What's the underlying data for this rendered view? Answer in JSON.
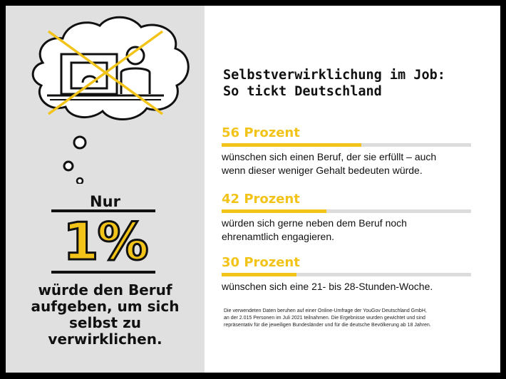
{
  "left_panel": {
    "intro": "Nur",
    "big_number": "1%",
    "caption_lines": [
      "würde den Beruf",
      "aufgeben, um sich",
      "selbst zu",
      "verwirklichen."
    ]
  },
  "right_panel": {
    "title_lines": [
      "Selbstverwirklichung im Job:",
      "So tickt Deutschland"
    ],
    "stats": [
      {
        "label": "56 Prozent",
        "value": 0.56,
        "text_lines": [
          "wünschen sich einen Beruf, der sie erfüllt – auch",
          "wenn dieser weniger Gehalt bedeuten würde."
        ]
      },
      {
        "label": "42 Prozent",
        "value": 0.42,
        "text_lines": [
          "würden sich gerne neben dem Beruf noch",
          "ehrenamtlich engagieren."
        ]
      },
      {
        "label": "30 Prozent",
        "value": 0.3,
        "text_lines": [
          "wünschen sich eine 21- bis 28-Stunden-Woche."
        ]
      }
    ],
    "footnote_lines": [
      "Die verwendeten Daten beruhen auf einer Online-Umfrage der YouGov Deutschland GmbH,",
      "an der 2.015 Personen im Juli 2021 teilnahmen. Die Ergebnisse wurden gewichtet und sind",
      "repräsentativ für die jeweiligen Bundesländer und für die deutsche Bevölkerung ab 18 Jahren."
    ]
  },
  "colors": {
    "accent": "#f2c318",
    "left_bg": "#e0e0e0",
    "frame": "#000000",
    "track": "#dcdcdc"
  },
  "icons": {
    "illustration": "thought-bubble-desk-crossed-icon"
  }
}
